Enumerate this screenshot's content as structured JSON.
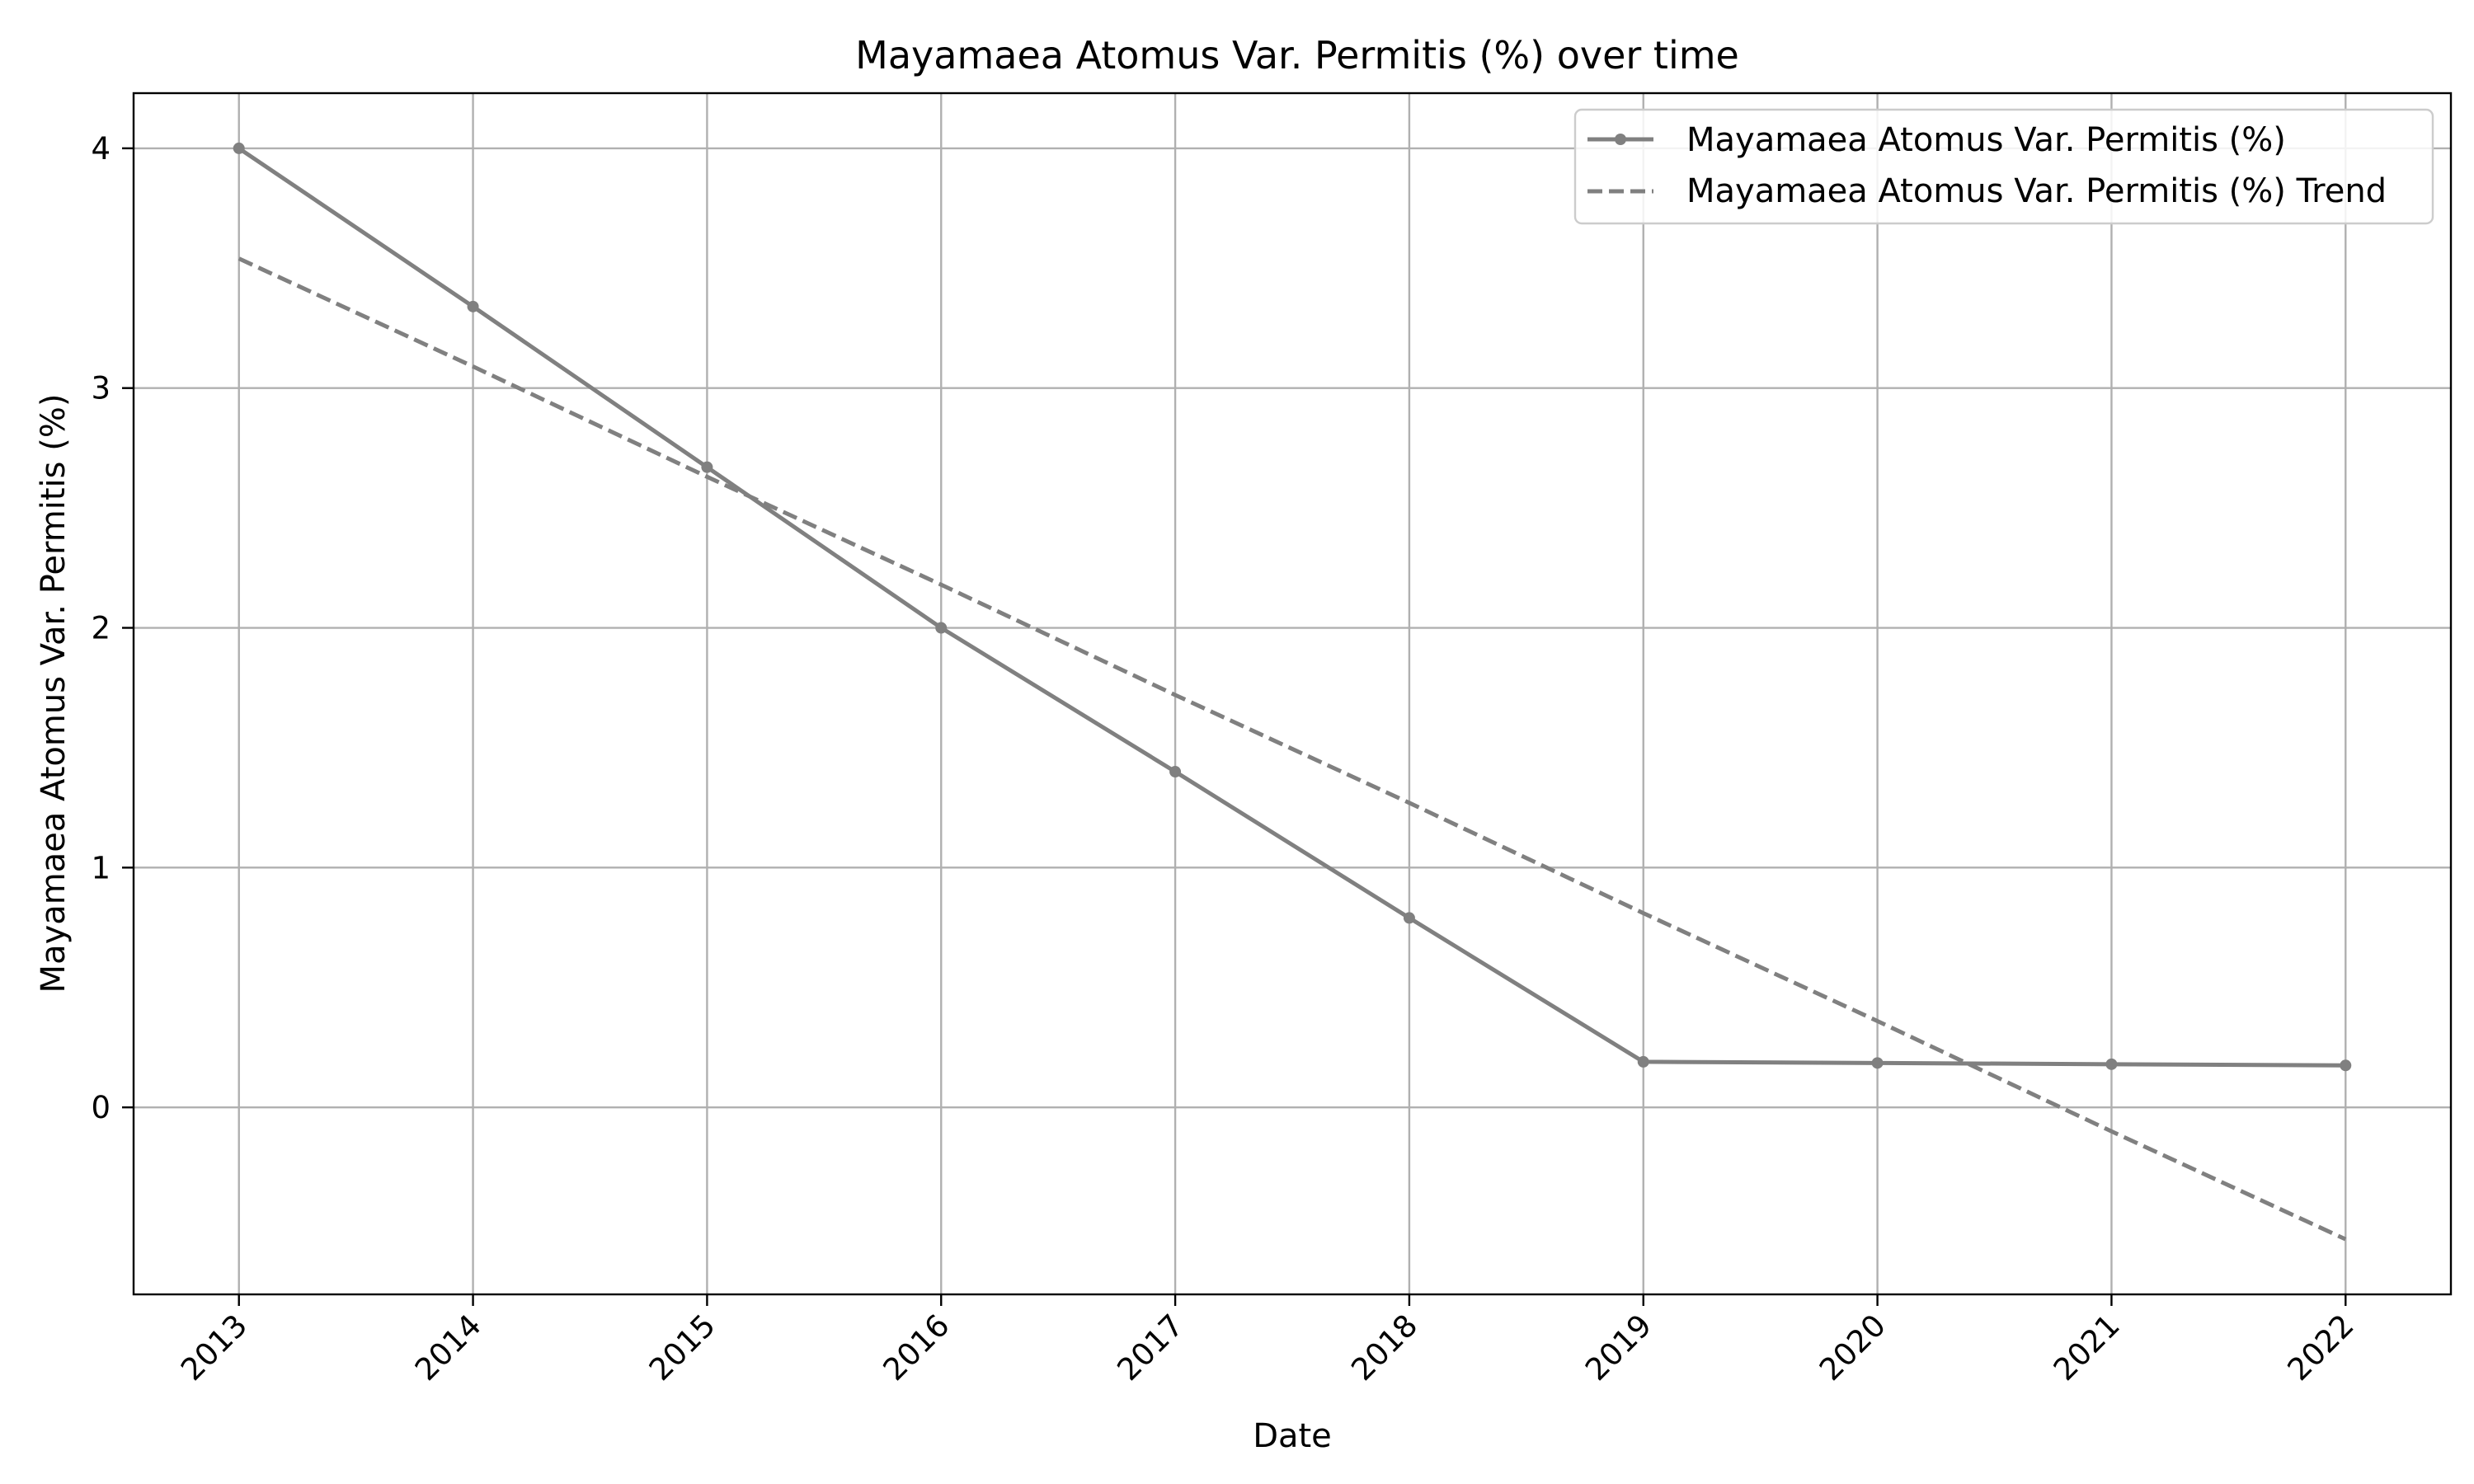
{
  "chart_data": {
    "type": "line",
    "title": "Mayamaea Atomus Var. Permitis (%) over time",
    "xlabel": "Date",
    "ylabel": "Mayamaea Atomus Var. Permitis (%)",
    "x": [
      "2013",
      "2014",
      "2015",
      "2016",
      "2017",
      "2018",
      "2019",
      "2020",
      "2021",
      "2022"
    ],
    "xlim": [
      2012.55,
      2022.45
    ],
    "ylim": [
      -0.78,
      4.23
    ],
    "yticks": [
      0,
      1,
      2,
      3,
      4
    ],
    "grid": true,
    "legend_position": "top-right",
    "series": [
      {
        "name": "Mayamaea Atomus Var. Permitis (%)",
        "style": "solid-with-markers",
        "color": "#808080",
        "values": [
          4.0,
          3.34,
          2.67,
          2.0,
          1.4,
          0.79,
          0.19,
          0.185,
          0.18,
          0.175
        ]
      },
      {
        "name": "Mayamaea Atomus Var. Permitis (%) Trend",
        "style": "dashed",
        "color": "#808080",
        "values": [
          3.54,
          3.09,
          2.63,
          2.18,
          1.72,
          1.27,
          0.81,
          0.36,
          -0.1,
          -0.55
        ]
      }
    ]
  }
}
